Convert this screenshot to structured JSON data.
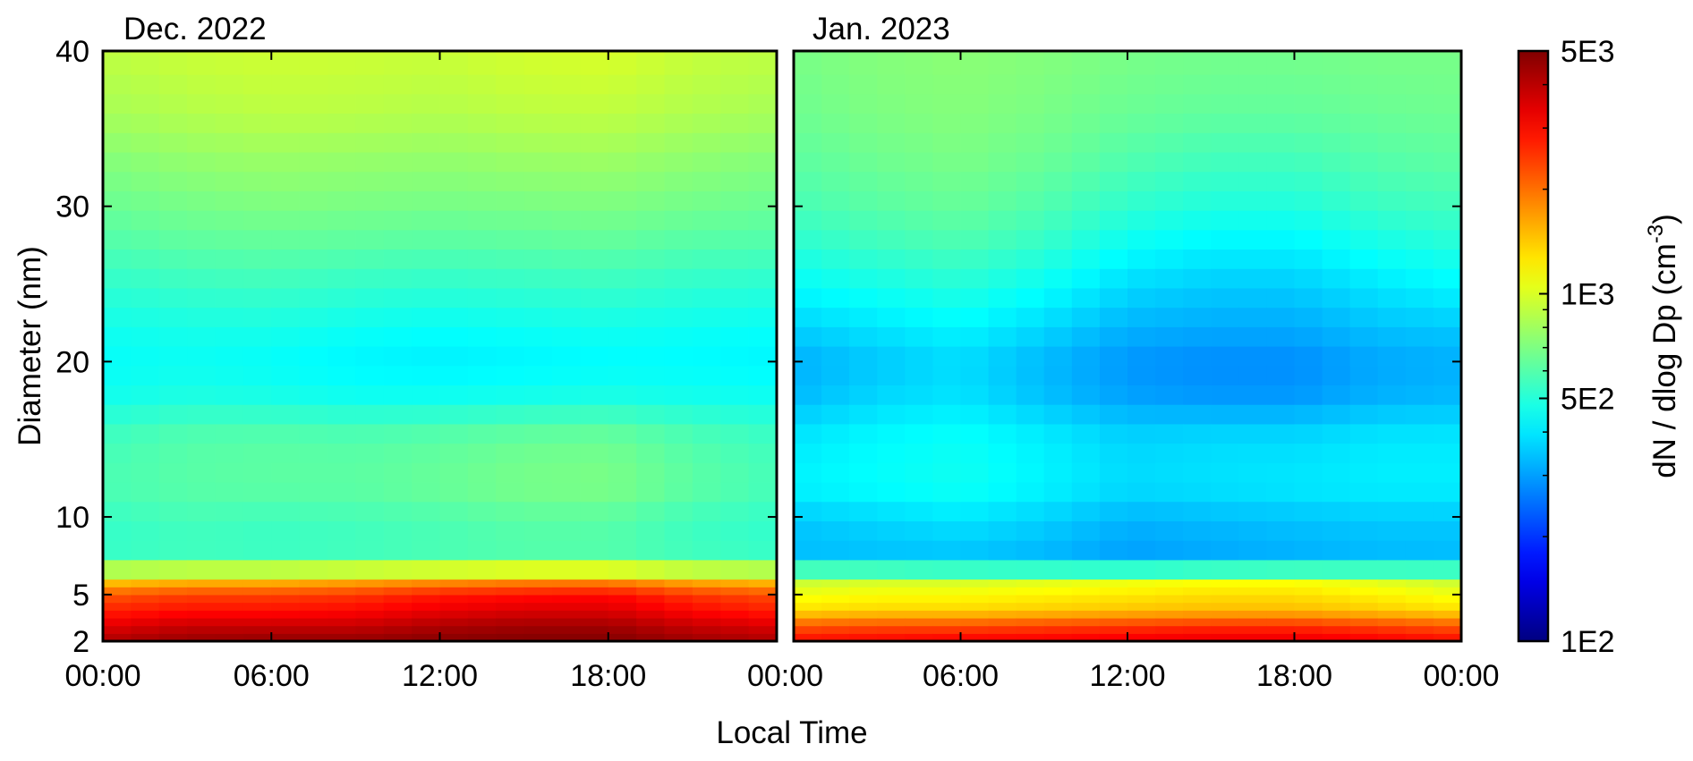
{
  "chart_data": {
    "type": "heatmap",
    "xlabel": "Local Time",
    "ylabel": "Diameter (nm)",
    "x_ticks": [
      "00:00",
      "06:00",
      "12:00",
      "18:00",
      "00:00"
    ],
    "y_ticks": [
      "2",
      "5",
      "10",
      "20",
      "30",
      "40"
    ],
    "y_range_nm": [
      2,
      40
    ],
    "x_range_hours": [
      0,
      24
    ],
    "colorbar": {
      "label_main": "dN / dlog Dp (cm",
      "label_sup": "-3",
      "label_close": ")",
      "scale": "log",
      "range": [
        100,
        5000
      ],
      "tick_labels": [
        "5E3",
        "1E3",
        "5E2",
        "1E2"
      ],
      "tick_values": [
        5000,
        1000,
        500,
        100
      ],
      "colormap": "jet"
    },
    "grid": false,
    "panels": [
      {
        "title": "Dec. 2022",
        "diameter_nm": [
          2,
          3,
          4,
          5,
          6,
          7,
          8,
          10,
          12,
          15,
          18,
          20,
          22,
          25,
          28,
          30,
          33,
          36,
          40
        ],
        "hours": [
          0,
          3,
          6,
          9,
          12,
          15,
          18,
          21,
          24
        ],
        "dN_dlogDp": [
          [
            4200,
            4600,
            4700,
            4700,
            4900,
            5000,
            5000,
            4500,
            4200
          ],
          [
            3400,
            3800,
            3800,
            3800,
            4200,
            4400,
            4400,
            3800,
            3500
          ],
          [
            2700,
            2900,
            2900,
            3000,
            3300,
            3500,
            3500,
            3000,
            2700
          ],
          [
            2200,
            2400,
            2400,
            2500,
            2800,
            2900,
            3000,
            2500,
            2300
          ],
          [
            1300,
            1400,
            1400,
            1500,
            1600,
            1700,
            1700,
            1450,
            1350
          ],
          [
            650,
            680,
            680,
            700,
            720,
            740,
            740,
            680,
            650
          ],
          [
            520,
            540,
            530,
            540,
            560,
            580,
            580,
            540,
            520
          ],
          [
            540,
            570,
            560,
            570,
            590,
            620,
            620,
            560,
            530
          ],
          [
            580,
            610,
            620,
            620,
            650,
            690,
            700,
            620,
            570
          ],
          [
            560,
            600,
            610,
            600,
            620,
            650,
            660,
            590,
            550
          ],
          [
            460,
            480,
            470,
            450,
            450,
            460,
            470,
            460,
            450
          ],
          [
            440,
            450,
            440,
            420,
            410,
            420,
            430,
            430,
            420
          ],
          [
            460,
            470,
            470,
            450,
            440,
            450,
            460,
            450,
            440
          ],
          [
            520,
            540,
            550,
            530,
            520,
            530,
            540,
            520,
            510
          ],
          [
            600,
            630,
            640,
            630,
            620,
            630,
            640,
            610,
            600
          ],
          [
            650,
            680,
            700,
            690,
            680,
            690,
            700,
            670,
            650
          ],
          [
            720,
            760,
            780,
            770,
            760,
            780,
            790,
            750,
            720
          ],
          [
            820,
            860,
            890,
            880,
            860,
            890,
            900,
            850,
            820
          ],
          [
            900,
            940,
            960,
            950,
            940,
            980,
            1000,
            930,
            900
          ]
        ]
      },
      {
        "title": "Jan. 2023",
        "diameter_nm": [
          2,
          3,
          4,
          5,
          6,
          7,
          8,
          10,
          12,
          15,
          18,
          20,
          22,
          25,
          28,
          30,
          33,
          36,
          40
        ],
        "hours": [
          0,
          3,
          6,
          9,
          12,
          15,
          18,
          21,
          24
        ],
        "dN_dlogDp": [
          [
            3000,
            3100,
            3200,
            3200,
            3300,
            3400,
            3400,
            3200,
            3000
          ],
          [
            2200,
            2300,
            2300,
            2400,
            2500,
            2600,
            2600,
            2400,
            2200
          ],
          [
            1300,
            1350,
            1350,
            1400,
            1450,
            1500,
            1500,
            1400,
            1300
          ],
          [
            1100,
            1150,
            1150,
            1200,
            1250,
            1300,
            1300,
            1200,
            1100
          ],
          [
            900,
            950,
            950,
            1000,
            1050,
            1100,
            1100,
            1000,
            900
          ],
          [
            420,
            400,
            380,
            360,
            340,
            350,
            360,
            380,
            400
          ],
          [
            330,
            340,
            350,
            330,
            300,
            310,
            320,
            330,
            330
          ],
          [
            360,
            380,
            400,
            370,
            330,
            340,
            350,
            360,
            360
          ],
          [
            420,
            440,
            460,
            420,
            380,
            390,
            400,
            410,
            410
          ],
          [
            400,
            430,
            450,
            410,
            370,
            380,
            380,
            400,
            400
          ],
          [
            330,
            370,
            390,
            340,
            300,
            290,
            290,
            320,
            330
          ],
          [
            320,
            350,
            380,
            330,
            290,
            280,
            280,
            310,
            320
          ],
          [
            360,
            390,
            420,
            370,
            320,
            310,
            310,
            340,
            350
          ],
          [
            440,
            470,
            500,
            450,
            380,
            360,
            360,
            400,
            430
          ],
          [
            520,
            560,
            590,
            540,
            460,
            430,
            430,
            480,
            510
          ],
          [
            570,
            610,
            640,
            590,
            520,
            490,
            490,
            540,
            560
          ],
          [
            620,
            660,
            690,
            650,
            590,
            560,
            560,
            600,
            620
          ],
          [
            660,
            700,
            720,
            690,
            650,
            630,
            630,
            650,
            660
          ],
          [
            690,
            720,
            740,
            720,
            690,
            680,
            680,
            690,
            690
          ]
        ]
      }
    ]
  }
}
